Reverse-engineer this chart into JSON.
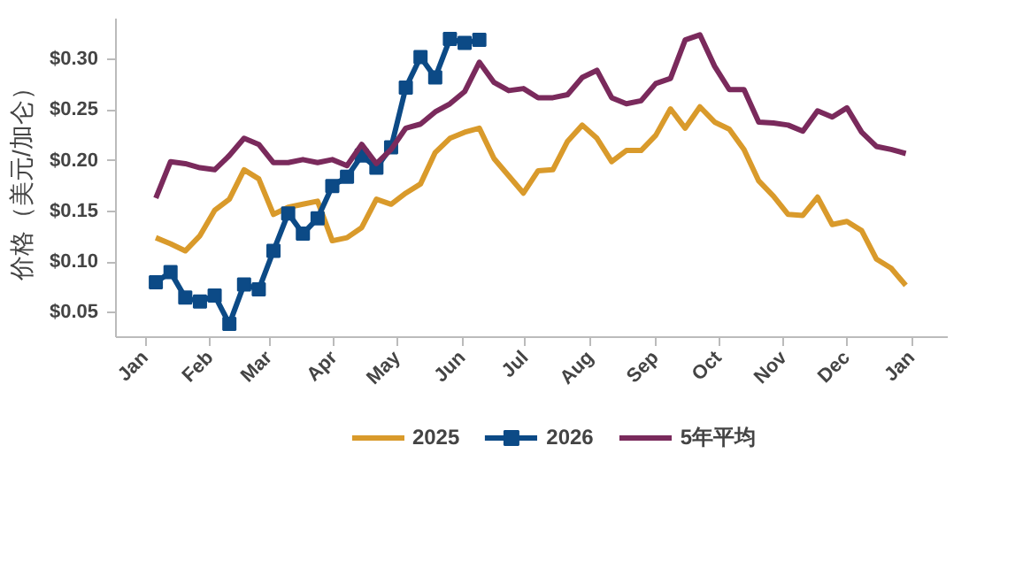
{
  "chart_data": {
    "type": "line",
    "ylabel": "价格（美元/加仑）",
    "xlim": [
      "2024-12-18",
      "2026-01-18"
    ],
    "ylim": [
      0.026,
      0.34
    ],
    "xticks": [
      {
        "value": "2025-01-01",
        "label": "Jan"
      },
      {
        "value": "2025-02-01",
        "label": "Feb"
      },
      {
        "value": "2025-03-01",
        "label": "Mar"
      },
      {
        "value": "2025-04-01",
        "label": "Apr"
      },
      {
        "value": "2025-05-01",
        "label": "May"
      },
      {
        "value": "2025-06-01",
        "label": "Jun"
      },
      {
        "value": "2025-07-01",
        "label": "Jul"
      },
      {
        "value": "2025-08-01",
        "label": "Aug"
      },
      {
        "value": "2025-09-01",
        "label": "Sep"
      },
      {
        "value": "2025-10-01",
        "label": "Oct"
      },
      {
        "value": "2025-11-01",
        "label": "Nov"
      },
      {
        "value": "2025-12-01",
        "label": "Dec"
      },
      {
        "value": "2026-01-01",
        "label": "Jan"
      }
    ],
    "yticks": [
      {
        "value": 0.05,
        "label": "$0.05"
      },
      {
        "value": 0.1,
        "label": "$0.10"
      },
      {
        "value": 0.15,
        "label": "$0.15"
      },
      {
        "value": 0.2,
        "label": "$0.20"
      },
      {
        "value": 0.25,
        "label": "$0.25"
      },
      {
        "value": 0.3,
        "label": "$0.30"
      }
    ],
    "x": [
      "2025-01-06",
      "2025-01-13",
      "2025-01-20",
      "2025-01-27",
      "2025-02-03",
      "2025-02-10",
      "2025-02-17",
      "2025-02-24",
      "2025-03-03",
      "2025-03-10",
      "2025-03-17",
      "2025-03-24",
      "2025-03-31",
      "2025-04-07",
      "2025-04-14",
      "2025-04-21",
      "2025-04-28",
      "2025-05-05",
      "2025-05-12",
      "2025-05-19",
      "2025-05-26",
      "2025-06-02",
      "2025-06-09",
      "2025-06-16",
      "2025-06-23",
      "2025-06-30",
      "2025-07-07",
      "2025-07-14",
      "2025-07-21",
      "2025-07-28",
      "2025-08-04",
      "2025-08-11",
      "2025-08-18",
      "2025-08-25",
      "2025-09-01",
      "2025-09-08",
      "2025-09-15",
      "2025-09-22",
      "2025-09-29",
      "2025-10-06",
      "2025-10-13",
      "2025-10-20",
      "2025-10-27",
      "2025-11-03",
      "2025-11-10",
      "2025-11-17",
      "2025-11-24",
      "2025-12-01",
      "2025-12-08",
      "2025-12-15",
      "2025-12-22",
      "2025-12-29"
    ],
    "grid": false,
    "legend": "bottom",
    "line_style": "solid",
    "series": [
      {
        "name": "2025",
        "color": "#d99a2b",
        "values": [
          0.124,
          0.118,
          0.111,
          0.126,
          0.151,
          0.162,
          0.191,
          0.182,
          0.147,
          0.154,
          0.157,
          0.16,
          0.121,
          0.124,
          0.134,
          0.162,
          0.157,
          0.168,
          0.177,
          0.208,
          0.222,
          0.228,
          0.232,
          0.202,
          0.185,
          0.168,
          0.19,
          0.191,
          0.219,
          0.235,
          0.222,
          0.199,
          0.21,
          0.21,
          0.225,
          0.251,
          0.232,
          0.253,
          0.238,
          0.231,
          0.211,
          0.18,
          0.165,
          0.147,
          0.146,
          0.164,
          0.137,
          0.14,
          0.131,
          0.103,
          0.094,
          0.077
        ]
      },
      {
        "name": "2026",
        "color": "#0c4a86",
        "marker": "square",
        "values": [
          0.08,
          0.09,
          0.065,
          0.061,
          0.067,
          0.039,
          0.078,
          0.073,
          0.111,
          0.148,
          0.128,
          0.143,
          0.175,
          0.184,
          0.205,
          0.193,
          0.213,
          0.272,
          0.302,
          0.282,
          0.32,
          0.316,
          0.319,
          null,
          null,
          null,
          null,
          null,
          null,
          null,
          null,
          null,
          null,
          null,
          null,
          null,
          null,
          null,
          null,
          null,
          null,
          null,
          null,
          null,
          null,
          null,
          null,
          null,
          null,
          null,
          null,
          null
        ]
      },
      {
        "name": "5年平均",
        "color": "#7a2a5c",
        "values": [
          0.163,
          0.199,
          0.197,
          0.193,
          0.191,
          0.205,
          0.222,
          0.216,
          0.198,
          0.198,
          0.201,
          0.198,
          0.201,
          0.195,
          0.216,
          0.197,
          0.211,
          0.232,
          0.236,
          0.248,
          0.256,
          0.268,
          0.297,
          0.277,
          0.269,
          0.271,
          0.262,
          0.262,
          0.265,
          0.282,
          0.289,
          0.262,
          0.256,
          0.259,
          0.276,
          0.281,
          0.319,
          0.324,
          0.293,
          0.27,
          0.27,
          0.238,
          0.237,
          0.235,
          0.229,
          0.249,
          0.243,
          0.252,
          0.228,
          0.214,
          0.211,
          0.207
        ]
      }
    ]
  }
}
